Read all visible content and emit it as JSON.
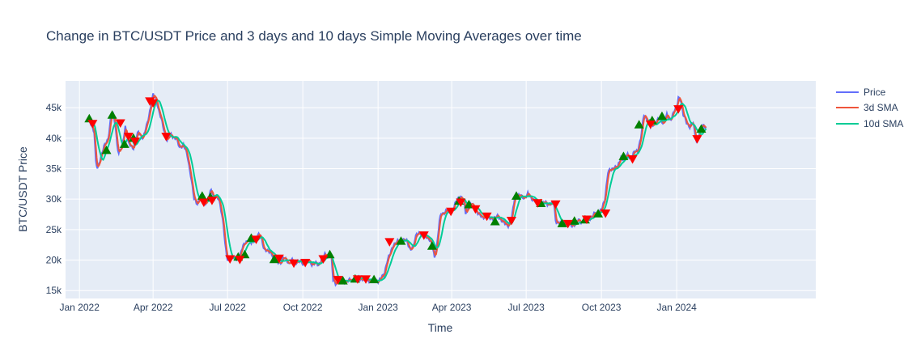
{
  "chart_data": {
    "type": "line",
    "title": "Change in BTC/USDT Price and 3 days and 10 days Simple Moving Averages over time",
    "xlabel": "Time",
    "ylabel": "BTC/USDT Price",
    "x_tick_labels": [
      "Jan 2022",
      "Apr 2022",
      "Jul 2022",
      "Oct 2022",
      "Jan 2023",
      "Apr 2023",
      "Jul 2023",
      "Oct 2023",
      "Jan 2024"
    ],
    "y_tick_labels": [
      "15k",
      "20k",
      "25k",
      "30k",
      "35k",
      "40k",
      "45k"
    ],
    "y_ticks": [
      15000,
      20000,
      25000,
      30000,
      35000,
      40000,
      45000
    ],
    "x_range_days": [
      -17,
      900
    ],
    "x_tick_days": [
      0,
      90,
      181,
      273,
      365,
      455,
      546,
      638,
      730
    ],
    "ylim": [
      13700,
      49400
    ],
    "legend": [
      "Price",
      "3d SMA",
      "10d SMA"
    ],
    "colors": {
      "price": "#636efa",
      "sma3": "#ef553b",
      "sma10": "#00cc96",
      "buy": "#008000",
      "sell": "#ff0000",
      "plot_bg": "#e5ecf6",
      "grid": "#ffffff",
      "text": "#2a3f5f"
    },
    "price_anchors": [
      [
        10,
        43000
      ],
      [
        14,
        42500
      ],
      [
        18,
        41000
      ],
      [
        20,
        36000
      ],
      [
        22,
        35000
      ],
      [
        26,
        37000
      ],
      [
        30,
        38500
      ],
      [
        35,
        40000
      ],
      [
        38,
        43000
      ],
      [
        41,
        44000
      ],
      [
        44,
        42000
      ],
      [
        46,
        39000
      ],
      [
        48,
        37500
      ],
      [
        52,
        38500
      ],
      [
        56,
        42000
      ],
      [
        60,
        39000
      ],
      [
        66,
        38500
      ],
      [
        72,
        41000
      ],
      [
        78,
        40000
      ],
      [
        82,
        42000
      ],
      [
        86,
        44500
      ],
      [
        90,
        47000
      ],
      [
        94,
        46500
      ],
      [
        97,
        44500
      ],
      [
        100,
        43000
      ],
      [
        104,
        41000
      ],
      [
        107,
        39700
      ],
      [
        112,
        40500
      ],
      [
        118,
        40000
      ],
      [
        122,
        38500
      ],
      [
        127,
        39000
      ],
      [
        132,
        37000
      ],
      [
        136,
        34000
      ],
      [
        140,
        30000
      ],
      [
        144,
        29300
      ],
      [
        148,
        30500
      ],
      [
        152,
        29200
      ],
      [
        158,
        30000
      ],
      [
        161,
        31500
      ],
      [
        164,
        30300
      ],
      [
        168,
        30500
      ],
      [
        172,
        29000
      ],
      [
        176,
        26000
      ],
      [
        178,
        22500
      ],
      [
        181,
        19800
      ],
      [
        184,
        20700
      ],
      [
        188,
        20400
      ],
      [
        192,
        20000
      ],
      [
        196,
        20600
      ],
      [
        198,
        21600
      ],
      [
        202,
        22700
      ],
      [
        206,
        23400
      ],
      [
        210,
        22700
      ],
      [
        214,
        23300
      ],
      [
        218,
        24100
      ],
      [
        222,
        23800
      ],
      [
        226,
        21800
      ],
      [
        230,
        21300
      ],
      [
        234,
        21400
      ],
      [
        238,
        20300
      ],
      [
        242,
        19800
      ],
      [
        246,
        19600
      ],
      [
        250,
        20300
      ],
      [
        254,
        20000
      ],
      [
        256,
        19400
      ],
      [
        260,
        19900
      ],
      [
        264,
        19800
      ],
      [
        270,
        19700
      ],
      [
        274,
        19400
      ],
      [
        280,
        19900
      ],
      [
        284,
        19400
      ],
      [
        288,
        19500
      ],
      [
        292,
        19100
      ],
      [
        296,
        20300
      ],
      [
        300,
        20800
      ],
      [
        304,
        20400
      ],
      [
        306,
        21000
      ],
      [
        308,
        20300
      ],
      [
        310,
        16600
      ],
      [
        313,
        16200
      ],
      [
        318,
        16800
      ],
      [
        324,
        16500
      ],
      [
        330,
        16600
      ],
      [
        336,
        16900
      ],
      [
        340,
        17100
      ],
      [
        346,
        16900
      ],
      [
        352,
        16800
      ],
      [
        360,
        16600
      ],
      [
        366,
        16650
      ],
      [
        372,
        17500
      ],
      [
        376,
        19900
      ],
      [
        380,
        21000
      ],
      [
        384,
        22700
      ],
      [
        388,
        22900
      ],
      [
        392,
        23200
      ],
      [
        396,
        23400
      ],
      [
        400,
        23000
      ],
      [
        404,
        21900
      ],
      [
        408,
        22100
      ],
      [
        412,
        24300
      ],
      [
        416,
        24600
      ],
      [
        420,
        23800
      ],
      [
        424,
        24000
      ],
      [
        428,
        23200
      ],
      [
        432,
        22000
      ],
      [
        434,
        20500
      ],
      [
        437,
        22500
      ],
      [
        440,
        26300
      ],
      [
        442,
        27700
      ],
      [
        446,
        27800
      ],
      [
        450,
        28100
      ],
      [
        454,
        28000
      ],
      [
        458,
        28700
      ],
      [
        462,
        30100
      ],
      [
        466,
        30400
      ],
      [
        470,
        29500
      ],
      [
        472,
        27800
      ],
      [
        476,
        28800
      ],
      [
        480,
        29200
      ],
      [
        484,
        28400
      ],
      [
        488,
        27400
      ],
      [
        492,
        27100
      ],
      [
        496,
        27200
      ],
      [
        500,
        26900
      ],
      [
        504,
        27000
      ],
      [
        508,
        26800
      ],
      [
        512,
        27300
      ],
      [
        516,
        26500
      ],
      [
        520,
        25900
      ],
      [
        524,
        25800
      ],
      [
        528,
        26500
      ],
      [
        532,
        30300
      ],
      [
        536,
        30600
      ],
      [
        540,
        30400
      ],
      [
        544,
        30300
      ],
      [
        548,
        30800
      ],
      [
        552,
        30200
      ],
      [
        556,
        29900
      ],
      [
        560,
        29200
      ],
      [
        564,
        29300
      ],
      [
        568,
        29400
      ],
      [
        572,
        29200
      ],
      [
        576,
        29300
      ],
      [
        580,
        29100
      ],
      [
        582,
        26500
      ],
      [
        586,
        26100
      ],
      [
        590,
        26000
      ],
      [
        594,
        26200
      ],
      [
        598,
        25900
      ],
      [
        602,
        25700
      ],
      [
        606,
        26000
      ],
      [
        610,
        26500
      ],
      [
        614,
        26300
      ],
      [
        618,
        26600
      ],
      [
        622,
        26800
      ],
      [
        626,
        27000
      ],
      [
        630,
        27600
      ],
      [
        634,
        27900
      ],
      [
        638,
        28100
      ],
      [
        642,
        29900
      ],
      [
        646,
        34500
      ],
      [
        650,
        34700
      ],
      [
        654,
        35400
      ],
      [
        658,
        35200
      ],
      [
        662,
        36900
      ],
      [
        666,
        36600
      ],
      [
        670,
        37200
      ],
      [
        674,
        36800
      ],
      [
        678,
        37600
      ],
      [
        682,
        37900
      ],
      [
        686,
        40000
      ],
      [
        690,
        43800
      ],
      [
        694,
        43200
      ],
      [
        698,
        41800
      ],
      [
        702,
        42300
      ],
      [
        706,
        42900
      ],
      [
        710,
        43100
      ],
      [
        714,
        42500
      ],
      [
        718,
        43700
      ],
      [
        722,
        43000
      ],
      [
        726,
        44200
      ],
      [
        730,
        45000
      ],
      [
        732,
        46800
      ],
      [
        735,
        46300
      ],
      [
        738,
        43700
      ],
      [
        742,
        42700
      ],
      [
        746,
        41800
      ],
      [
        750,
        42500
      ],
      [
        754,
        39700
      ],
      [
        757,
        40100
      ],
      [
        760,
        41800
      ],
      [
        763,
        42300
      ],
      [
        766,
        41600
      ]
    ],
    "buy_signals": [
      [
        12,
        43200
      ],
      [
        33,
        38000
      ],
      [
        40,
        43800
      ],
      [
        55,
        39000
      ],
      [
        66,
        40000
      ],
      [
        150,
        30500
      ],
      [
        160,
        30300
      ],
      [
        194,
        20500
      ],
      [
        202,
        20900
      ],
      [
        210,
        23600
      ],
      [
        238,
        20100
      ],
      [
        306,
        20900
      ],
      [
        322,
        16600
      ],
      [
        337,
        16900
      ],
      [
        360,
        16800
      ],
      [
        393,
        23100
      ],
      [
        431,
        22300
      ],
      [
        464,
        29700
      ],
      [
        476,
        29100
      ],
      [
        508,
        26300
      ],
      [
        534,
        30500
      ],
      [
        564,
        29300
      ],
      [
        590,
        26000
      ],
      [
        605,
        26400
      ],
      [
        618,
        26600
      ],
      [
        634,
        27600
      ],
      [
        665,
        37000
      ],
      [
        684,
        42200
      ],
      [
        700,
        42900
      ],
      [
        712,
        43600
      ],
      [
        760,
        41500
      ]
    ],
    "sell_signals": [
      [
        16,
        42400
      ],
      [
        50,
        42500
      ],
      [
        60,
        40300
      ],
      [
        68,
        39500
      ],
      [
        86,
        46100
      ],
      [
        90,
        45800
      ],
      [
        106,
        40300
      ],
      [
        152,
        29500
      ],
      [
        162,
        29800
      ],
      [
        184,
        20200
      ],
      [
        196,
        20100
      ],
      [
        216,
        23400
      ],
      [
        244,
        20300
      ],
      [
        262,
        19500
      ],
      [
        276,
        19600
      ],
      [
        298,
        20200
      ],
      [
        316,
        16800
      ],
      [
        340,
        16900
      ],
      [
        350,
        16900
      ],
      [
        379,
        23000
      ],
      [
        421,
        24100
      ],
      [
        454,
        28000
      ],
      [
        466,
        29500
      ],
      [
        484,
        28400
      ],
      [
        498,
        27200
      ],
      [
        528,
        26500
      ],
      [
        560,
        29400
      ],
      [
        582,
        29200
      ],
      [
        597,
        26000
      ],
      [
        620,
        26700
      ],
      [
        643,
        27700
      ],
      [
        676,
        36600
      ],
      [
        698,
        42300
      ],
      [
        732,
        44800
      ],
      [
        755,
        39900
      ]
    ]
  }
}
